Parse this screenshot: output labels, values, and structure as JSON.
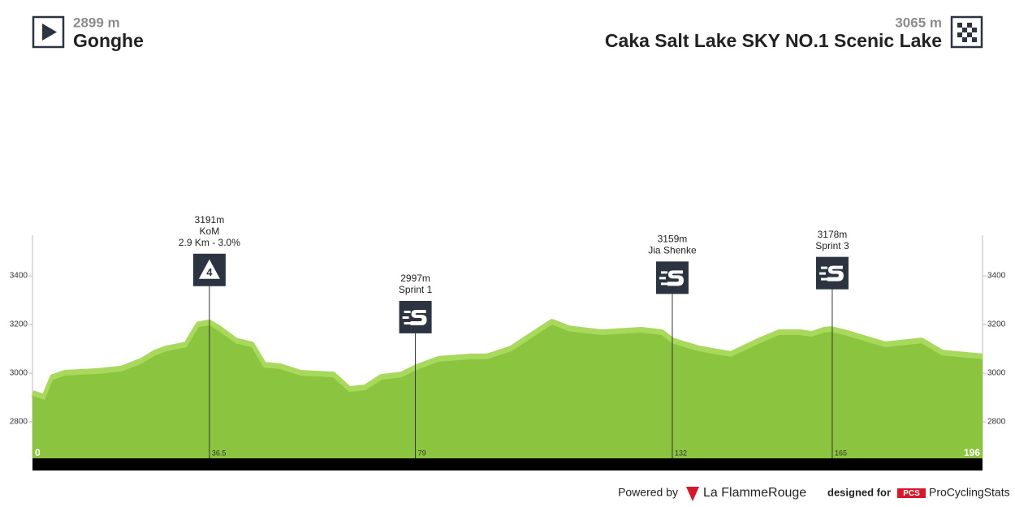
{
  "chart_data": {
    "type": "area",
    "start": {
      "elevation_label": "2899 m",
      "name": "Gonghe"
    },
    "finish": {
      "elevation_label": "3065 m",
      "name": "Caka Salt Lake SKY NO.1 Scenic Lake"
    },
    "x": [
      0,
      2.5,
      4.2,
      6.7,
      13.4,
      18.4,
      22.6,
      25.3,
      27.6,
      31.8,
      34.3,
      36.5,
      38.5,
      41.9,
      45.2,
      47.7,
      51.1,
      55.3,
      62,
      65.3,
      68.7,
      72,
      76.2,
      79.2,
      83.8,
      90.5,
      93.8,
      98.8,
      103.9,
      107.2,
      110.6,
      117.3,
      125.6,
      129.8,
      132,
      137.4,
      144.1,
      150,
      154.1,
      158.3,
      160.8,
      163.3,
      164.7,
      167.5,
      175.9,
      183.4,
      187.6,
      196
    ],
    "values": [
      2917,
      2900,
      2983,
      3000,
      3007,
      3017,
      3050,
      3083,
      3100,
      3117,
      3200,
      3207,
      3183,
      3133,
      3117,
      3033,
      3027,
      3000,
      2993,
      2933,
      2940,
      2983,
      2993,
      3023,
      3057,
      3067,
      3067,
      3100,
      3167,
      3210,
      3183,
      3167,
      3177,
      3167,
      3133,
      3100,
      3077,
      3133,
      3167,
      3167,
      3160,
      3177,
      3180,
      3167,
      3117,
      3133,
      3083,
      3067
    ],
    "color": "#8bc53f",
    "edge_color": "#a8d95c",
    "xlim": [
      0,
      196
    ],
    "xticks": [
      0,
      36.5,
      79,
      132,
      165,
      196
    ],
    "ylim": [
      2650,
      3567
    ],
    "yticks": [
      2800,
      3000,
      3200,
      3400
    ],
    "markers": [
      {
        "km": 36.5,
        "elevation": 3191,
        "elevation_label": "3191m",
        "lines": [
          "KoM",
          "2.9 Km - 3.0%"
        ],
        "category": 4
      },
      {
        "km": 79,
        "elevation": 2997,
        "elevation_label": "2997m",
        "lines": [
          "Sprint 1"
        ]
      },
      {
        "km": 132,
        "elevation": 3159,
        "elevation_label": "3159m",
        "lines": [
          "Jia Shenke"
        ]
      },
      {
        "km": 165,
        "elevation": 3178,
        "elevation_label": "3178m",
        "lines": [
          "Sprint 3"
        ]
      }
    ]
  },
  "footer": {
    "powered": "Powered by",
    "brand": "La FlammeRouge",
    "designed": "designed for",
    "pcs": "PCS",
    "site": "ProCyclingStats"
  }
}
